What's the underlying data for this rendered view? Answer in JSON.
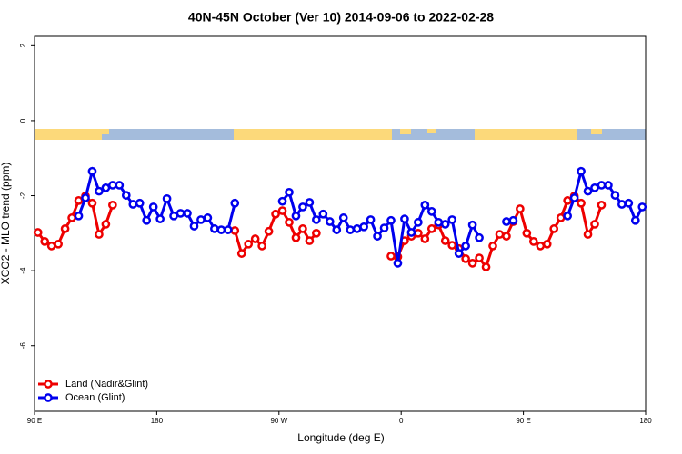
{
  "chart_data": {
    "type": "line",
    "title": "40N-45N October (Ver 10)   2014-09-06 to 2022-02-28",
    "xlabel": "Longitude (deg E)",
    "ylabel": "XCO2 - MLO trend (ppm)",
    "xlim": [
      90,
      540
    ],
    "ylim": [
      -7.75,
      2.25
    ],
    "xticks": [
      {
        "value": 90,
        "label": "90 E"
      },
      180,
      {
        "value": 270,
        "label": "90 W"
      },
      {
        "value": 360,
        "label": "0"
      },
      {
        "value": 450,
        "label": "90 E"
      },
      {
        "value": 540,
        "label": "180"
      }
    ],
    "yticks": [
      -6,
      -4,
      -2,
      0,
      2
    ],
    "legend": "bottom-left",
    "x": [
      92.5,
      97.5,
      102.5,
      107.5,
      112.5,
      117.5,
      122.5,
      127.5,
      132.5,
      137.5,
      142.5,
      147.5,
      152.5,
      157.5,
      162.5,
      167.5,
      172.5,
      177.5,
      182.5,
      187.5,
      192.5,
      197.5,
      202.5,
      207.5,
      212.5,
      217.5,
      222.5,
      227.5,
      232.5,
      237.5,
      242.5,
      247.5,
      252.5,
      257.5,
      262.5,
      267.5,
      272.5,
      277.5,
      282.5,
      287.5,
      292.5,
      297.5,
      302.5,
      307.5,
      312.5,
      317.5,
      322.5,
      327.5,
      332.5,
      337.5,
      342.5,
      347.5,
      352.5,
      357.5,
      362.5,
      367.5,
      372.5,
      377.5,
      382.5,
      387.5,
      392.5,
      397.5,
      402.5,
      407.5,
      412.5,
      417.5,
      422.5,
      427.5,
      432.5,
      437.5,
      442.5,
      447.5,
      452.5,
      457.5,
      462.5,
      467.5,
      472.5,
      477.5,
      482.5,
      487.5,
      492.5,
      497.5,
      502.5,
      507.5,
      512.5,
      517.5,
      522.5,
      527.5,
      532.5,
      537.5
    ],
    "series": [
      {
        "name": "Land (Nadir&Glint)",
        "color": "#ee0000",
        "values": [
          -2.98,
          -3.22,
          -3.34,
          -3.29,
          -2.88,
          -2.59,
          -2.13,
          -2.01,
          -2.2,
          -3.03,
          -2.76,
          -2.25,
          null,
          null,
          null,
          null,
          null,
          null,
          null,
          null,
          null,
          null,
          null,
          null,
          null,
          null,
          null,
          null,
          null,
          -2.93,
          -3.54,
          -3.29,
          -3.15,
          -3.34,
          -2.95,
          -2.49,
          -2.4,
          -2.71,
          -3.12,
          -2.88,
          -3.2,
          -3.0,
          null,
          null,
          null,
          null,
          null,
          null,
          null,
          null,
          null,
          null,
          -3.61,
          -3.63,
          -3.2,
          -3.08,
          -3.0,
          -3.15,
          -2.88,
          -2.78,
          -3.2,
          -3.32,
          -3.41,
          -3.68,
          -3.8,
          -3.66,
          -3.9,
          -3.34,
          -3.03,
          -3.08,
          -2.69,
          -2.35,
          -3.0,
          -3.22,
          -3.34,
          -3.29,
          -2.88,
          -2.59,
          -2.13,
          -2.01,
          -2.2,
          -3.03,
          -2.76,
          -2.25,
          null,
          null,
          null,
          null,
          null,
          null
        ]
      },
      {
        "name": "Ocean (Glint)",
        "color": "#0000ee",
        "values": [
          null,
          null,
          null,
          null,
          null,
          null,
          -2.54,
          -2.06,
          -1.35,
          -1.88,
          -1.79,
          -1.72,
          -1.72,
          -1.99,
          -2.23,
          -2.2,
          -2.66,
          -2.3,
          -2.62,
          -2.08,
          -2.54,
          -2.47,
          -2.47,
          -2.81,
          -2.64,
          -2.59,
          -2.88,
          -2.91,
          -2.91,
          -2.2,
          null,
          null,
          null,
          null,
          null,
          null,
          -2.15,
          -1.91,
          -2.54,
          -2.3,
          -2.18,
          -2.64,
          -2.49,
          -2.69,
          -2.91,
          -2.59,
          -2.91,
          -2.88,
          -2.83,
          -2.64,
          -3.08,
          -2.86,
          -2.66,
          -3.8,
          -2.62,
          -2.98,
          -2.71,
          -2.25,
          -2.42,
          -2.71,
          -2.76,
          -2.64,
          -3.54,
          -3.34,
          -2.78,
          -3.12,
          null,
          null,
          null,
          -2.69,
          -2.66,
          null,
          null,
          null,
          null,
          null,
          null,
          null,
          -2.54,
          -2.06,
          -1.35,
          -1.88,
          -1.79,
          -1.72,
          -1.72,
          -1.99,
          -2.23,
          -2.2,
          -2.66,
          -2.3
        ]
      }
    ]
  }
}
